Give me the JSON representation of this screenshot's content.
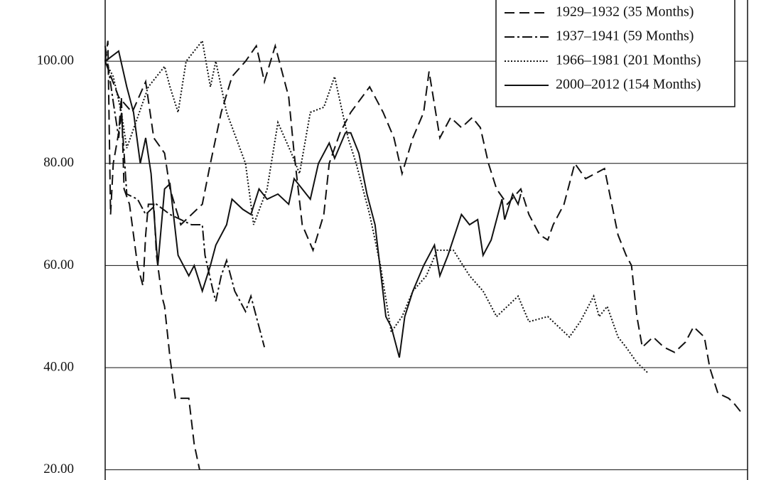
{
  "chart_data": {
    "type": "line",
    "xlim": [
      0,
      238
    ],
    "ylim": [
      18,
      112
    ],
    "yticks": [
      {
        "value": 20,
        "label": "20.00"
      },
      {
        "value": 40,
        "label": "40.00"
      },
      {
        "value": 60,
        "label": "60.00"
      },
      {
        "value": 80,
        "label": "80.00"
      },
      {
        "value": 100,
        "label": "100.00"
      }
    ],
    "grid": true,
    "legend": "upper right",
    "series": [
      {
        "name": "1929–1932 (35 Months)",
        "color": "#111",
        "line_style": "dashed",
        "x": [
          0,
          1,
          2,
          3,
          5,
          6,
          7,
          9,
          12,
          14,
          15,
          16,
          18,
          19,
          21,
          22,
          24,
          26,
          31,
          33,
          35
        ],
        "values": [
          100,
          104,
          70,
          80,
          86,
          93,
          75,
          72,
          60,
          56,
          66,
          72,
          72,
          62,
          54,
          52,
          42,
          34,
          34,
          25,
          20
        ]
      },
      {
        "name": "1937–1941 (59 Months)",
        "color": "#111",
        "line_style": "dashdot",
        "x": [
          0,
          3,
          5,
          6,
          8,
          12,
          15,
          19,
          24,
          28,
          32,
          36,
          37,
          40,
          41,
          43,
          45,
          48,
          52,
          54,
          57,
          59
        ],
        "values": [
          103,
          92,
          85,
          90,
          74,
          73,
          70,
          72,
          70,
          69,
          68,
          68,
          62,
          55,
          53,
          58,
          61,
          55,
          51,
          54,
          48,
          44
        ]
      },
      {
        "name": "1966–1981 (201 Months)",
        "color": "#111",
        "line_style": "dotted",
        "x": [
          0,
          3,
          6,
          8,
          16,
          22,
          24,
          27,
          30,
          36,
          39,
          41,
          45,
          52,
          55,
          60,
          64,
          69,
          72,
          76,
          81,
          85,
          90,
          93,
          98,
          102,
          106,
          110,
          114,
          119,
          123,
          129,
          135,
          140,
          145,
          153,
          157,
          164,
          168,
          172,
          176,
          181,
          183,
          186,
          190,
          193,
          197,
          201
        ],
        "values": [
          100,
          97,
          90,
          83,
          95,
          99,
          95,
          90,
          100,
          104,
          95,
          100,
          90,
          80,
          68,
          75,
          88,
          82,
          78,
          90,
          91,
          97,
          85,
          80,
          70,
          60,
          47,
          50,
          55,
          58,
          63,
          63,
          58,
          55,
          50,
          54,
          49,
          50,
          48,
          46,
          49,
          54,
          50,
          52,
          46,
          44,
          41,
          39
        ]
      },
      {
        "name": "2000–2012 (154 Months)",
        "color": "#111",
        "line_style": "solid",
        "x": [
          0,
          5,
          8,
          10.5,
          13,
          15,
          17,
          19.5,
          22,
          24,
          27,
          31,
          33,
          36,
          39,
          41,
          45,
          47,
          51,
          54,
          57,
          60,
          64,
          68,
          70,
          76,
          79,
          83,
          85,
          89,
          91,
          94,
          97,
          100,
          104,
          106,
          109,
          111,
          114,
          118,
          122,
          124,
          127,
          132,
          135,
          138,
          140,
          143,
          147,
          148,
          151,
          153,
          154
        ],
        "values": [
          100,
          102,
          95,
          90,
          80,
          85,
          78,
          60,
          75,
          76,
          62,
          58,
          60,
          55,
          60,
          64,
          68,
          73,
          71,
          70,
          75,
          73,
          74,
          72,
          77,
          73,
          80,
          84,
          81,
          86,
          86,
          82,
          74,
          68,
          50,
          48,
          42,
          50,
          55,
          60,
          64,
          58,
          62,
          70,
          68,
          69,
          62,
          65,
          73,
          69,
          74,
          72,
          74
        ]
      },
      {
        "color": "#111",
        "line_style": "dashed",
        "x": [
          0,
          5,
          10,
          15,
          18,
          22,
          24,
          28,
          36,
          39,
          43,
          47,
          52,
          56,
          59,
          63,
          68,
          70,
          73,
          77,
          81,
          83,
          87,
          91,
          98,
          103,
          107,
          110,
          114,
          118,
          120,
          124,
          128,
          132,
          136,
          139,
          142,
          145,
          149,
          154,
          157,
          161,
          164,
          166,
          170,
          174,
          178,
          185,
          190,
          193,
          195,
          197,
          199,
          203,
          207,
          211,
          215,
          218,
          222,
          224,
          227,
          231,
          233,
          236
        ],
        "values": [
          100,
          93,
          90,
          96,
          85,
          82,
          75,
          68,
          72,
          80,
          90,
          97,
          100,
          103,
          96,
          103,
          93,
          82,
          68,
          63,
          70,
          80,
          86,
          90,
          95,
          90,
          85,
          78,
          85,
          90,
          98,
          85,
          89,
          87,
          89,
          87,
          80,
          75,
          72,
          75,
          70,
          66,
          65,
          68,
          72,
          80,
          77,
          79,
          66,
          62,
          60,
          50,
          44,
          46,
          44,
          43,
          45,
          48,
          46,
          40,
          35,
          34,
          33,
          31
        ]
      }
    ]
  }
}
